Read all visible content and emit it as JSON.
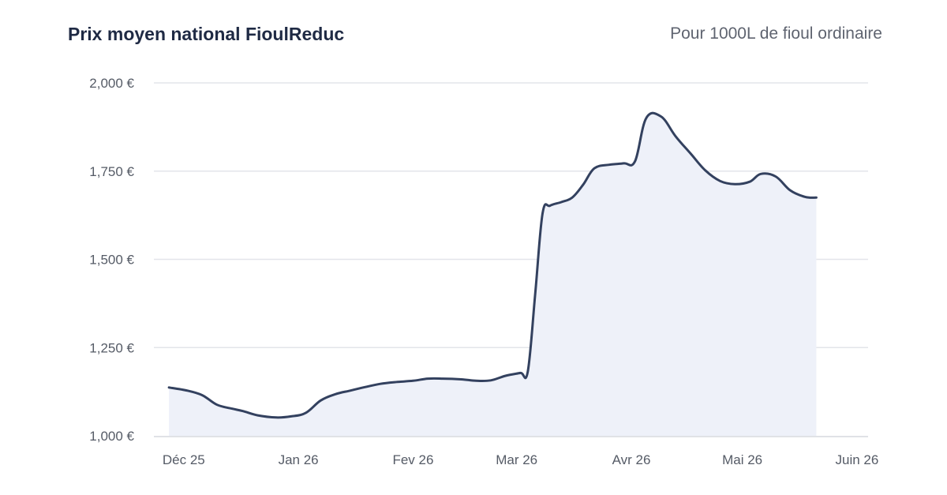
{
  "header": {
    "title": "Prix moyen national FioulReduc",
    "subtitle": "Pour 1000L de fioul ordinaire"
  },
  "chart_data": {
    "type": "area",
    "title": "Prix moyen national FioulReduc",
    "subtitle": "Pour 1000L de fioul ordinaire",
    "xlabel": "",
    "ylabel": "",
    "x_ticks": [
      "Déc 25",
      "Jan 26",
      "Fev 26",
      "Mar 26",
      "Avr 26",
      "Mai 26",
      "Juin 26"
    ],
    "x_range": [
      "2025-11-24",
      "2026-06-04"
    ],
    "y_ticks": [
      1000,
      1250,
      1500,
      1750,
      2000
    ],
    "y_tick_labels": [
      "1,000 €",
      "1,250 €",
      "1,500 €",
      "1,750 €",
      "2,000 €"
    ],
    "ylim": [
      1000,
      2000
    ],
    "grid": true,
    "colors": {
      "line": "#33415f",
      "fill": "#eef1f9",
      "grid": "#e3e5ea",
      "axis": "#d5d8de"
    },
    "series": [
      {
        "x": [
          "2025-11-27",
          "2025-12-02",
          "2025-12-06",
          "2025-12-10",
          "2025-12-14",
          "2025-12-17",
          "2025-12-21",
          "2025-12-26",
          "2025-12-30",
          "2026-01-03",
          "2026-01-07",
          "2026-01-11",
          "2026-01-15",
          "2026-01-19",
          "2026-01-23",
          "2026-01-27",
          "2026-02-01",
          "2026-02-05",
          "2026-02-09",
          "2026-02-14",
          "2026-02-18",
          "2026-02-22",
          "2026-02-26",
          "2026-03-02",
          "2026-03-04",
          "2026-03-06",
          "2026-03-08",
          "2026-03-10",
          "2026-03-13",
          "2026-03-16",
          "2026-03-19",
          "2026-03-22",
          "2026-03-26",
          "2026-03-30",
          "2026-04-02",
          "2026-04-05",
          "2026-04-09",
          "2026-04-13",
          "2026-04-17",
          "2026-04-21",
          "2026-04-25",
          "2026-04-29",
          "2026-05-03",
          "2026-05-06",
          "2026-05-10",
          "2026-05-14",
          "2026-05-18",
          "2026-05-21"
        ],
        "values": [
          1137,
          1128,
          1115,
          1088,
          1077,
          1070,
          1058,
          1052,
          1055,
          1065,
          1100,
          1118,
          1128,
          1138,
          1147,
          1152,
          1156,
          1162,
          1162,
          1160,
          1156,
          1157,
          1170,
          1178,
          1182,
          1400,
          1630,
          1652,
          1662,
          1675,
          1712,
          1758,
          1768,
          1772,
          1778,
          1900,
          1905,
          1848,
          1800,
          1752,
          1722,
          1713,
          1720,
          1742,
          1735,
          1695,
          1677,
          1675
        ]
      }
    ]
  }
}
